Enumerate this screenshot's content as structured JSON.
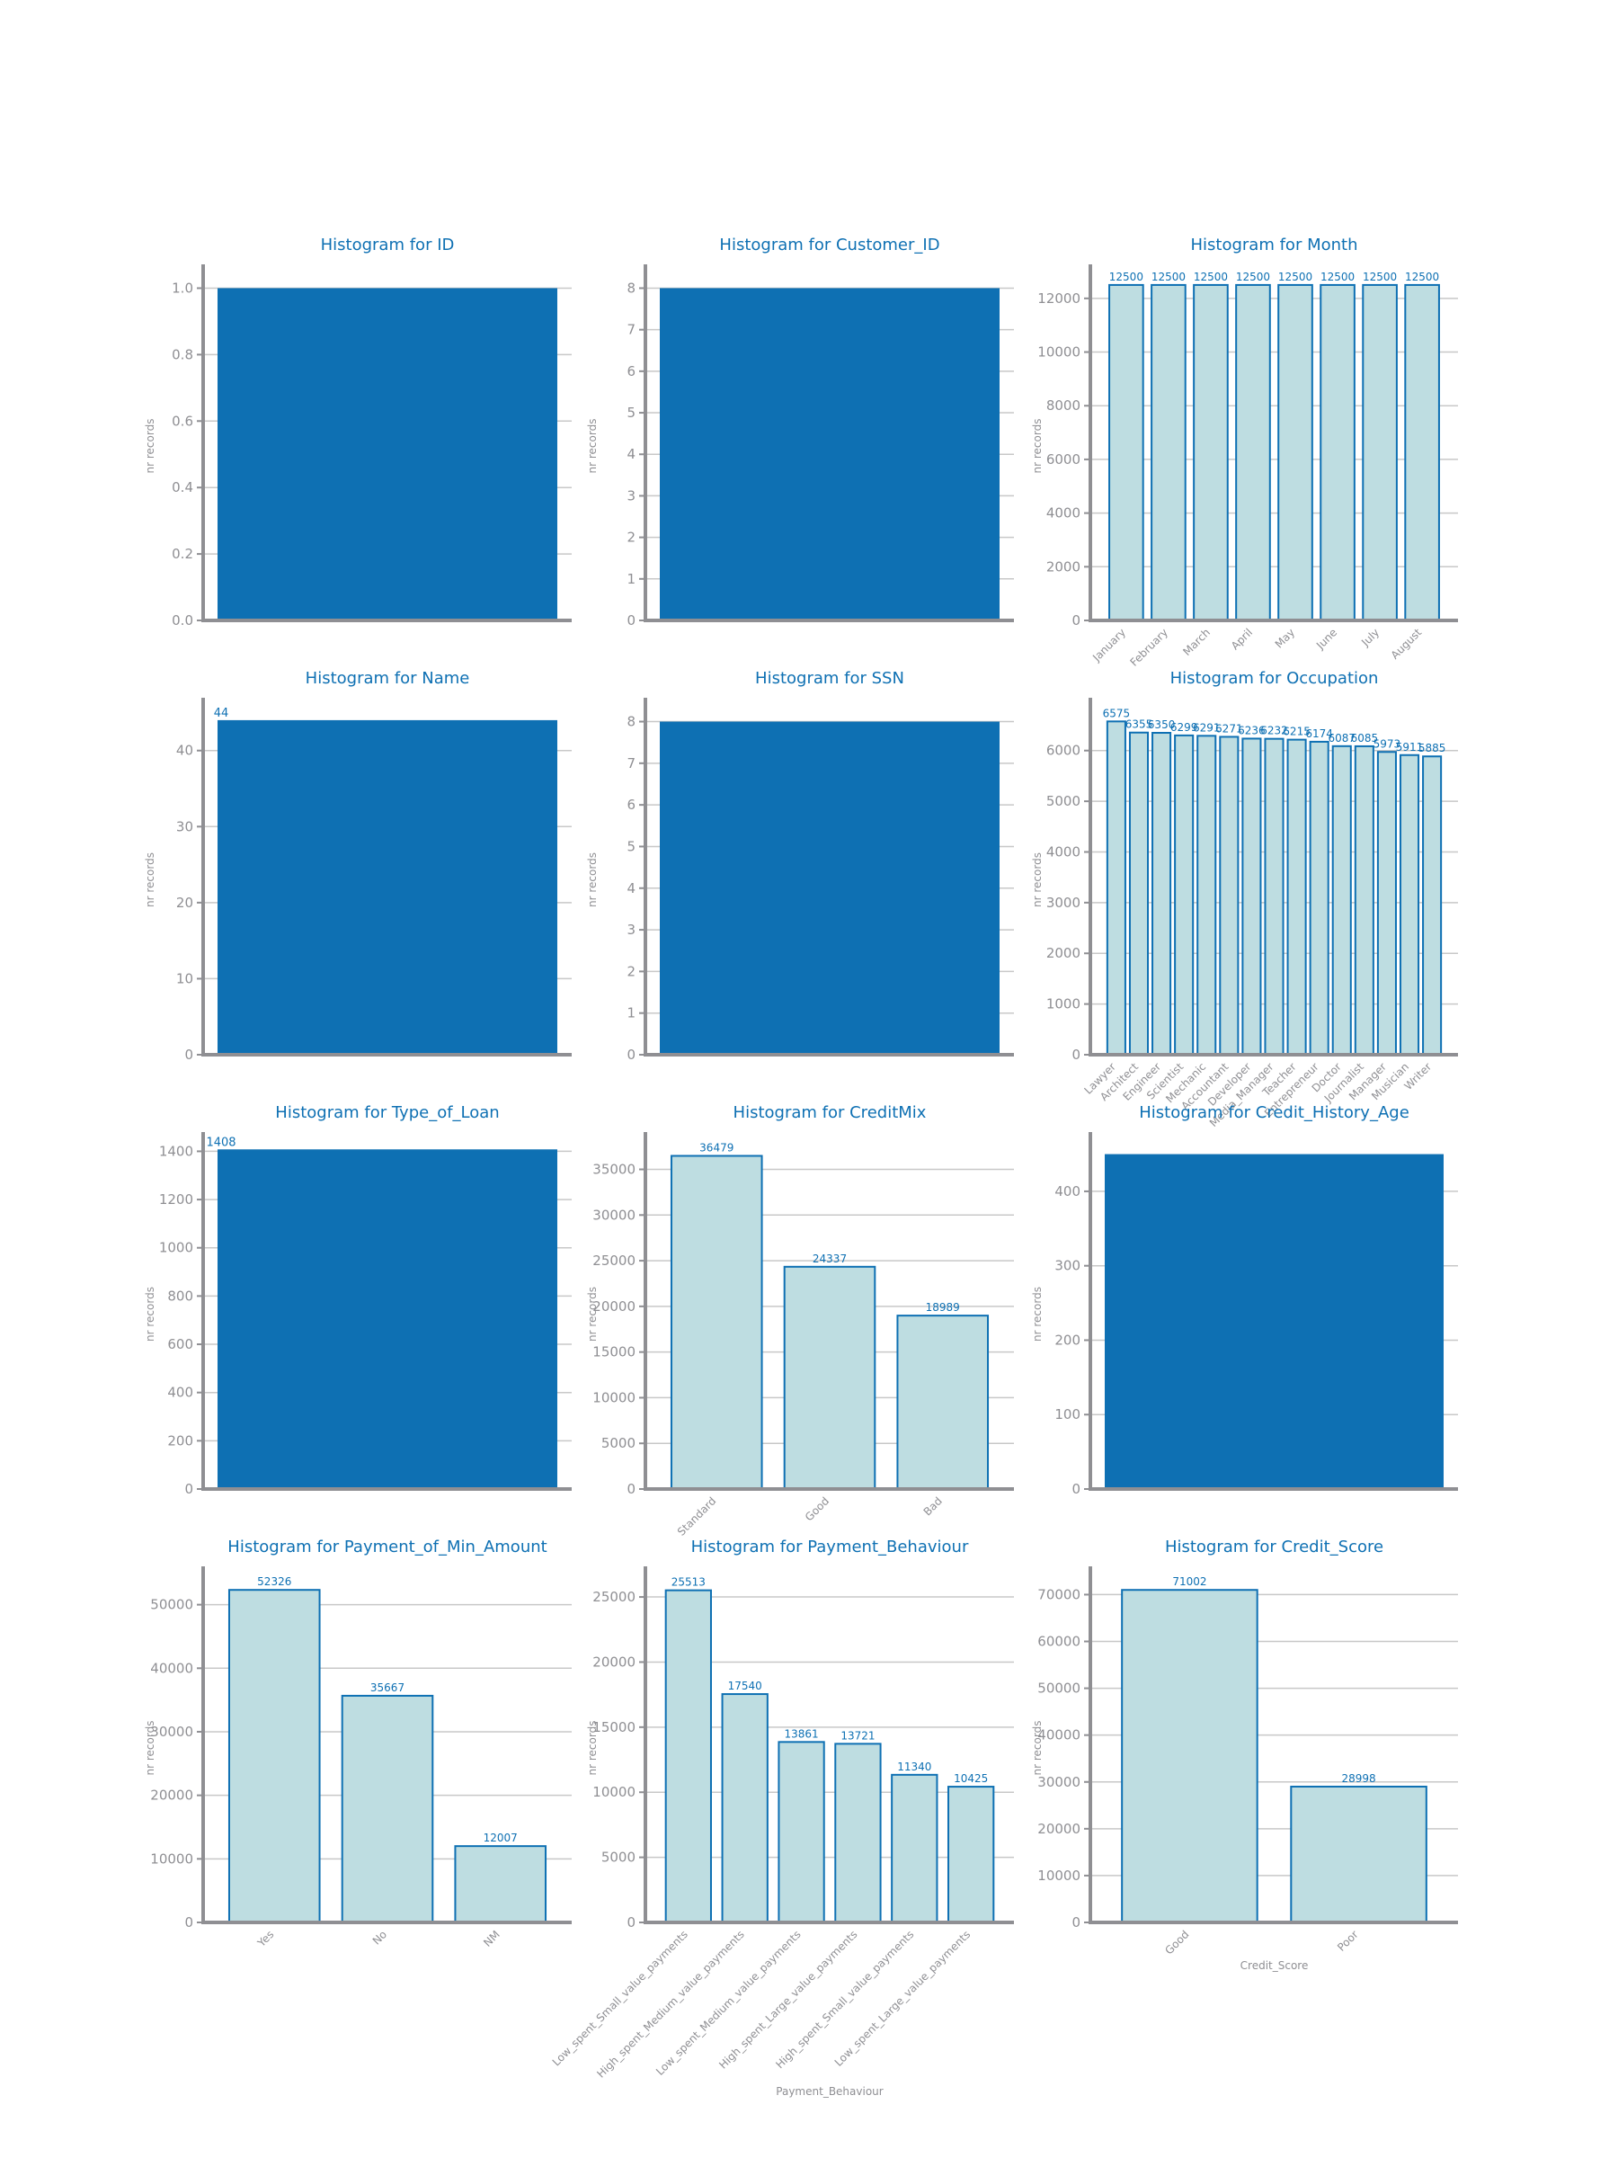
{
  "colors": {
    "line": "#0e70b3",
    "bar_fill": "#bedde1",
    "dense_fill": "#0e70b3",
    "axis": "#8f8f93",
    "tick_text": "#8f8f93",
    "grid": "#c8c8c8",
    "title": "#0e70b3"
  },
  "chart_data": [
    {
      "type": "bar",
      "title": "Histogram for ID",
      "xlabel": "",
      "ylabel": "nr records",
      "ylim": [
        0,
        1.05
      ],
      "yticks": [
        0.0,
        0.2,
        0.4,
        0.6,
        0.8,
        1.0
      ],
      "ytick_decimals": 1,
      "dense": true,
      "dense_top": 1,
      "grid": true
    },
    {
      "type": "bar",
      "title": "Histogram for Customer_ID",
      "xlabel": "",
      "ylabel": "nr records",
      "ylim": [
        0,
        8.4
      ],
      "yticks": [
        0,
        1,
        2,
        3,
        4,
        5,
        6,
        7,
        8
      ],
      "ytick_decimals": 0,
      "dense": true,
      "dense_top": 8,
      "grid": true
    },
    {
      "type": "bar",
      "title": "Histogram for Month",
      "xlabel": "",
      "ylabel": "nr records",
      "ylim": [
        0,
        13000
      ],
      "yticks": [
        0,
        2000,
        4000,
        6000,
        8000,
        10000,
        12000
      ],
      "ytick_decimals": 0,
      "categories": [
        "January",
        "February",
        "March",
        "April",
        "May",
        "June",
        "July",
        "August"
      ],
      "values": [
        12500,
        12500,
        12500,
        12500,
        12500,
        12500,
        12500,
        12500
      ],
      "grid": true
    },
    {
      "type": "bar",
      "title": "Histogram for Name",
      "xlabel": "",
      "ylabel": "nr records",
      "ylim": [
        0,
        46
      ],
      "yticks": [
        0,
        10,
        20,
        30,
        40
      ],
      "ytick_decimals": 0,
      "dense": true,
      "dense_top": 44,
      "top_label": "44",
      "grid": true
    },
    {
      "type": "bar",
      "title": "Histogram for SSN",
      "xlabel": "",
      "ylabel": "nr records",
      "ylim": [
        0,
        8.4
      ],
      "yticks": [
        0,
        1,
        2,
        3,
        4,
        5,
        6,
        7,
        8
      ],
      "ytick_decimals": 0,
      "dense": true,
      "dense_top": 8,
      "grid": true
    },
    {
      "type": "bar",
      "title": "Histogram for Occupation",
      "xlabel": "",
      "ylabel": "nr records",
      "ylim": [
        0,
        6900
      ],
      "yticks": [
        0,
        1000,
        2000,
        3000,
        4000,
        5000,
        6000
      ],
      "ytick_decimals": 0,
      "categories": [
        "Lawyer",
        "Architect",
        "Engineer",
        "Scientist",
        "Mechanic",
        "Accountant",
        "Developer",
        "Media_Manager",
        "Teacher",
        "Entrepreneur",
        "Doctor",
        "Journalist",
        "Manager",
        "Musician",
        "Writer"
      ],
      "values": [
        6575,
        6355,
        6350,
        6299,
        6291,
        6271,
        6236,
        6232,
        6215,
        6174,
        6087,
        6085,
        5973,
        5911,
        5885
      ],
      "grid": true
    },
    {
      "type": "bar",
      "title": "Histogram for Type_of_Loan",
      "xlabel": "",
      "ylabel": "nr records",
      "ylim": [
        0,
        1450
      ],
      "yticks": [
        0,
        200,
        400,
        600,
        800,
        1000,
        1200,
        1400
      ],
      "ytick_decimals": 0,
      "dense": true,
      "dense_top": 1408,
      "top_label": "1408",
      "grid": true
    },
    {
      "type": "bar",
      "title": "Histogram for CreditMix",
      "xlabel": "",
      "ylabel": "nr records",
      "ylim": [
        0,
        38300
      ],
      "yticks": [
        0,
        5000,
        10000,
        15000,
        20000,
        25000,
        30000,
        35000
      ],
      "ytick_decimals": 0,
      "categories": [
        "Standard",
        "Good",
        "Bad"
      ],
      "values": [
        36479,
        24337,
        18989
      ],
      "grid": true
    },
    {
      "type": "bar",
      "title": "Histogram for Credit_History_Age",
      "xlabel": "",
      "ylabel": "nr records",
      "ylim": [
        0,
        470
      ],
      "yticks": [
        0,
        100,
        200,
        300,
        400
      ],
      "ytick_decimals": 0,
      "dense": true,
      "dense_top": 450,
      "grid": true
    },
    {
      "type": "bar",
      "title": "Histogram for Payment_of_Min_Amount",
      "xlabel": "",
      "ylabel": "nr records",
      "ylim": [
        0,
        54900
      ],
      "yticks": [
        0,
        10000,
        20000,
        30000,
        40000,
        50000
      ],
      "ytick_decimals": 0,
      "categories": [
        "Yes",
        "No",
        "NM"
      ],
      "values": [
        52326,
        35667,
        12007
      ],
      "grid": true
    },
    {
      "type": "bar",
      "title": "Histogram for Payment_Behaviour",
      "xlabel": "Payment_Behaviour",
      "ylabel": "nr records",
      "ylim": [
        0,
        26800
      ],
      "yticks": [
        0,
        5000,
        10000,
        15000,
        20000,
        25000
      ],
      "ytick_decimals": 0,
      "categories": [
        "Low_spent_Small_value_payments",
        "High_spent_Medium_value_payments",
        "Low_spent_Medium_value_payments",
        "High_spent_Large_value_payments",
        "High_spent_Small_value_payments",
        "Low_spent_Large_value_payments"
      ],
      "values": [
        25513,
        17540,
        13861,
        13721,
        11340,
        10425
      ],
      "grid": true
    },
    {
      "type": "bar",
      "title": "Histogram for Credit_Score",
      "xlabel": "Credit_Score",
      "ylabel": "nr records",
      "ylim": [
        0,
        74500
      ],
      "yticks": [
        0,
        10000,
        20000,
        30000,
        40000,
        50000,
        60000,
        70000
      ],
      "ytick_decimals": 0,
      "categories": [
        "Good",
        "Poor"
      ],
      "values": [
        71002,
        28998
      ],
      "grid": true
    }
  ]
}
